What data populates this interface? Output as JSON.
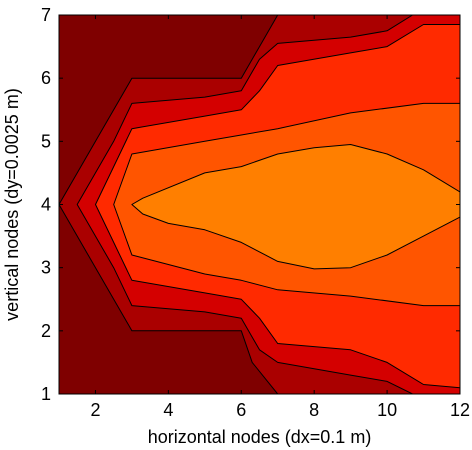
{
  "chart_data": {
    "type": "filled-contour",
    "title": "",
    "xlabel": "horizontal nodes (dx=0.1 m)",
    "ylabel": "vertical nodes (dy=0.0025 m)",
    "xlim": [
      1,
      12
    ],
    "ylim": [
      1,
      7
    ],
    "xticks": [
      2,
      4,
      6,
      8,
      10,
      12
    ],
    "yticks": [
      1,
      2,
      3,
      4,
      5,
      6,
      7
    ],
    "x_tick_labels": [
      "2",
      "4",
      "6",
      "8",
      "10",
      "12"
    ],
    "y_tick_labels": [
      "1",
      "2",
      "3",
      "4",
      "5",
      "6",
      "7"
    ],
    "levels": [
      {
        "level": 1,
        "color": "#7f0000"
      },
      {
        "level": 2,
        "color": "#aa0000"
      },
      {
        "level": 3,
        "color": "#d40000"
      },
      {
        "level": 4,
        "color": "#ff2a00"
      },
      {
        "level": 5,
        "color": "#ff5500"
      },
      {
        "level": 6,
        "color": "#ff7f00"
      }
    ],
    "contours": [
      {
        "level": 2,
        "points": [
          [
            1,
            4
          ],
          [
            3,
            6
          ],
          [
            6,
            6
          ],
          [
            6.5,
            6.5
          ],
          [
            7,
            7
          ],
          [
            12,
            7
          ],
          [
            12,
            1
          ],
          [
            7,
            1
          ],
          [
            6.3,
            1.5
          ],
          [
            6,
            2
          ],
          [
            3,
            2
          ]
        ]
      },
      {
        "level": 3,
        "points": [
          [
            1.5,
            4
          ],
          [
            2.5,
            5
          ],
          [
            3,
            5.6
          ],
          [
            5,
            5.7
          ],
          [
            6,
            5.8
          ],
          [
            6.5,
            6.3
          ],
          [
            7,
            6.55
          ],
          [
            9,
            6.65
          ],
          [
            10,
            6.75
          ],
          [
            10.7,
            7
          ],
          [
            12,
            7
          ],
          [
            12,
            1
          ],
          [
            10.7,
            1
          ],
          [
            10,
            1.2
          ],
          [
            9,
            1.3
          ],
          [
            7,
            1.5
          ],
          [
            6.5,
            1.7
          ],
          [
            6,
            2.2
          ],
          [
            5,
            2.3
          ],
          [
            3,
            2.4
          ],
          [
            2.5,
            3
          ]
        ]
      },
      {
        "level": 4,
        "points": [
          [
            2,
            4
          ],
          [
            2.5,
            4.6
          ],
          [
            3,
            5.2
          ],
          [
            5,
            5.4
          ],
          [
            6,
            5.5
          ],
          [
            6.5,
            5.8
          ],
          [
            7,
            6.2
          ],
          [
            9,
            6.4
          ],
          [
            10,
            6.5
          ],
          [
            11,
            6.85
          ],
          [
            12,
            6.85
          ],
          [
            12,
            1.1
          ],
          [
            11,
            1.15
          ],
          [
            10,
            1.5
          ],
          [
            9,
            1.7
          ],
          [
            7,
            1.8
          ],
          [
            6.5,
            2.2
          ],
          [
            6,
            2.5
          ],
          [
            5,
            2.6
          ],
          [
            3,
            2.8
          ],
          [
            2.5,
            3.4
          ]
        ]
      },
      {
        "level": 5,
        "points": [
          [
            2.5,
            4
          ],
          [
            3,
            4.8
          ],
          [
            5,
            5
          ],
          [
            6,
            5.1
          ],
          [
            7,
            5.2
          ],
          [
            9,
            5.45
          ],
          [
            11,
            5.6
          ],
          [
            12,
            5.6
          ],
          [
            12,
            2.4
          ],
          [
            11,
            2.4
          ],
          [
            9,
            2.55
          ],
          [
            7,
            2.65
          ],
          [
            6,
            2.8
          ],
          [
            5,
            2.9
          ],
          [
            3,
            3.2
          ]
        ]
      },
      {
        "level": 6,
        "points": [
          [
            3,
            4
          ],
          [
            3.3,
            4.1
          ],
          [
            5,
            4.5
          ],
          [
            6,
            4.6
          ],
          [
            7,
            4.8
          ],
          [
            8,
            4.9
          ],
          [
            9,
            4.95
          ],
          [
            10,
            4.8
          ],
          [
            11,
            4.55
          ],
          [
            12,
            4.2
          ],
          [
            12,
            3.8
          ],
          [
            11,
            3.5
          ],
          [
            10,
            3.2
          ],
          [
            9,
            3
          ],
          [
            8,
            2.98
          ],
          [
            7,
            3.1
          ],
          [
            6,
            3.4
          ],
          [
            5,
            3.6
          ],
          [
            4,
            3.7
          ],
          [
            3.3,
            3.85
          ]
        ]
      }
    ]
  }
}
